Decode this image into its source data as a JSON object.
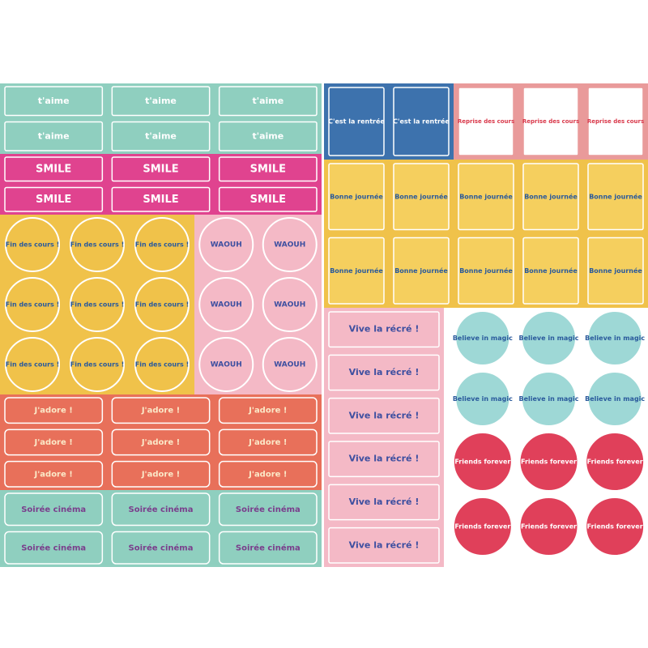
{
  "blocks": [
    {
      "stickers": [
        "t'aime",
        "t'aime",
        "t'aime",
        "t'aime",
        "t'aime",
        "t'aime"
      ]
    },
    {
      "stickers": [
        "SMILE",
        "SMILE",
        "SMILE",
        "SMILE",
        "SMILE",
        "SMILE"
      ]
    },
    {
      "stickers": [
        "Fin des cours !",
        "Fin des cours !",
        "Fin des cours !",
        "Fin des cours !",
        "Fin des cours !",
        "Fin des cours !",
        "Fin des cours !",
        "Fin des cours !",
        "Fin des cours !"
      ]
    },
    {
      "stickers": [
        "WAOUH",
        "WAOUH",
        "WAOUH",
        "WAOUH",
        "WAOUH",
        "WAOUH"
      ]
    },
    {
      "stickers": [
        "J'adore !",
        "J'adore !",
        "J'adore !",
        "J'adore !",
        "J'adore !",
        "J'adore !",
        "J'adore !",
        "J'adore !",
        "J'adore !"
      ]
    },
    {
      "stickers": [
        "Soirée cinéma",
        "Soirée cinéma",
        "Soirée cinéma",
        "Soirée cinéma",
        "Soirée cinéma",
        "Soirée cinéma"
      ]
    },
    {
      "stickers": [
        "C'est la rentrée",
        "C'est la rentrée"
      ]
    },
    {
      "stickers": [
        "Reprise des cours",
        "Reprise des cours",
        "Reprise des cours"
      ]
    },
    {
      "stickers": [
        "Bonne journée",
        "Bonne journée",
        "Bonne journée",
        "Bonne journée",
        "Bonne journée",
        "Bonne journée",
        "Bonne journée",
        "Bonne journée",
        "Bonne journée",
        "Bonne journée"
      ]
    },
    {
      "stickers": [
        "Vive la récré !",
        "Vive la récré !",
        "Vive la récré !",
        "Vive la récré !",
        "Vive la récré !",
        "Vive la récré !"
      ]
    },
    {
      "stickers": [
        "Believe in magic",
        "Believe in magic",
        "Believe in magic",
        "Believe in magic",
        "Believe in magic",
        "Believe in magic"
      ]
    },
    {
      "stickers": [
        "Friends forever",
        "Friends forever",
        "Friends forever",
        "Friends forever",
        "Friends forever",
        "Friends forever"
      ]
    }
  ]
}
